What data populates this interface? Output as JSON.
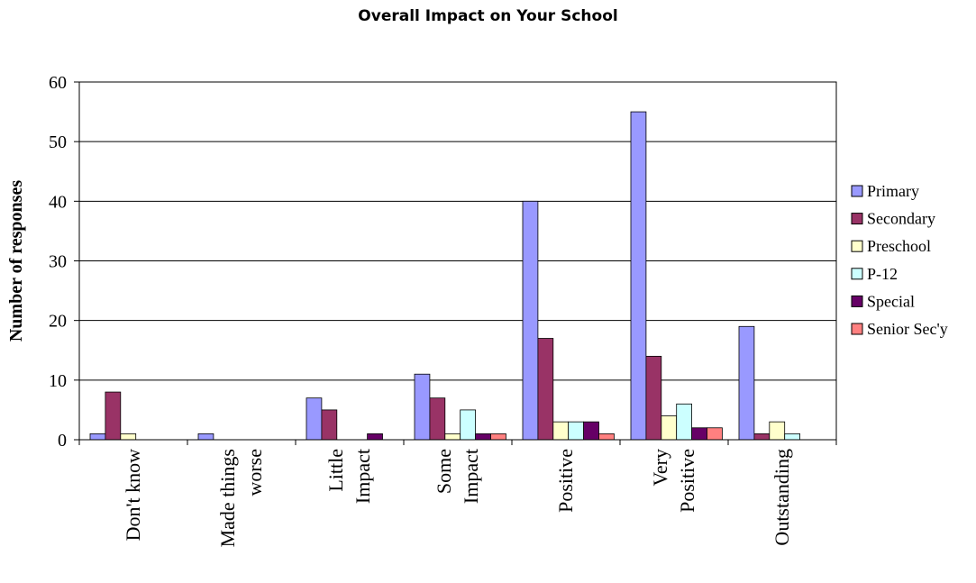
{
  "chart_data": {
    "type": "bar",
    "title": "Overall Impact on Your School",
    "ylabel": "Number of responses",
    "xlabel": "",
    "ylim": [
      0,
      60
    ],
    "yticks": [
      0,
      10,
      20,
      30,
      40,
      50,
      60
    ],
    "grid": true,
    "legend_position": "right",
    "categories": [
      [
        "Don't know"
      ],
      [
        "Made things",
        "worse"
      ],
      [
        "Little",
        "Impact"
      ],
      [
        "Some",
        "Impact"
      ],
      [
        "Positive"
      ],
      [
        "Very",
        "Positive"
      ],
      [
        "Outstanding"
      ]
    ],
    "series": [
      {
        "name": "Primary",
        "color": "#9999ff",
        "values": [
          1,
          1,
          7,
          11,
          40,
          55,
          19
        ]
      },
      {
        "name": "Secondary",
        "color": "#993366",
        "values": [
          8,
          0,
          5,
          7,
          17,
          14,
          1
        ]
      },
      {
        "name": "Preschool",
        "color": "#ffffcc",
        "values": [
          1,
          0,
          0,
          1,
          3,
          4,
          3
        ]
      },
      {
        "name": "P-12",
        "color": "#ccffff",
        "values": [
          0,
          0,
          0,
          5,
          3,
          6,
          1
        ]
      },
      {
        "name": "Special",
        "color": "#660066",
        "values": [
          0,
          0,
          1,
          1,
          3,
          2,
          0
        ]
      },
      {
        "name": "Senior Sec'y",
        "color": "#ff8080",
        "values": [
          0,
          0,
          0,
          1,
          1,
          2,
          0
        ]
      }
    ]
  }
}
